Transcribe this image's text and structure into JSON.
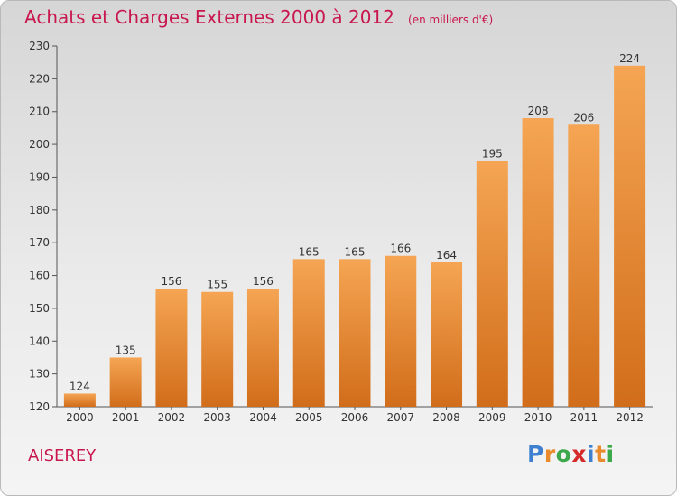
{
  "header": {
    "title": "Achats et Charges Externes 2000 à 2012",
    "unit": "(en milliers d'€)"
  },
  "footer": {
    "commune": "AISEREY",
    "brand": {
      "letters": [
        "P",
        "r",
        "o",
        "x",
        "i",
        "t",
        "i"
      ],
      "colors": [
        "#3e7fd0",
        "#e98a2c",
        "#3ca84b",
        "#d62b2b",
        "#3e7fd0",
        "#e98a2c",
        "#3ca84b"
      ]
    }
  },
  "colors": {
    "bar_light": "#f5a553",
    "bar_dark": "#d16d1a",
    "text_accent": "#c8174f",
    "axis": "#555555"
  },
  "chart_data": {
    "type": "bar",
    "title": "Achats et Charges Externes 2000 à 2012",
    "subtitle": "(en milliers d'€)",
    "categories": [
      "2000",
      "2001",
      "2002",
      "2003",
      "2004",
      "2005",
      "2006",
      "2007",
      "2008",
      "2009",
      "2010",
      "2011",
      "2012"
    ],
    "values": [
      124,
      135,
      156,
      155,
      156,
      165,
      165,
      166,
      164,
      195,
      208,
      206,
      224
    ],
    "ylim": [
      120,
      230
    ],
    "yticks": [
      120,
      130,
      140,
      150,
      160,
      170,
      180,
      190,
      200,
      210,
      220,
      230
    ],
    "grid": false,
    "data_labels": true
  }
}
